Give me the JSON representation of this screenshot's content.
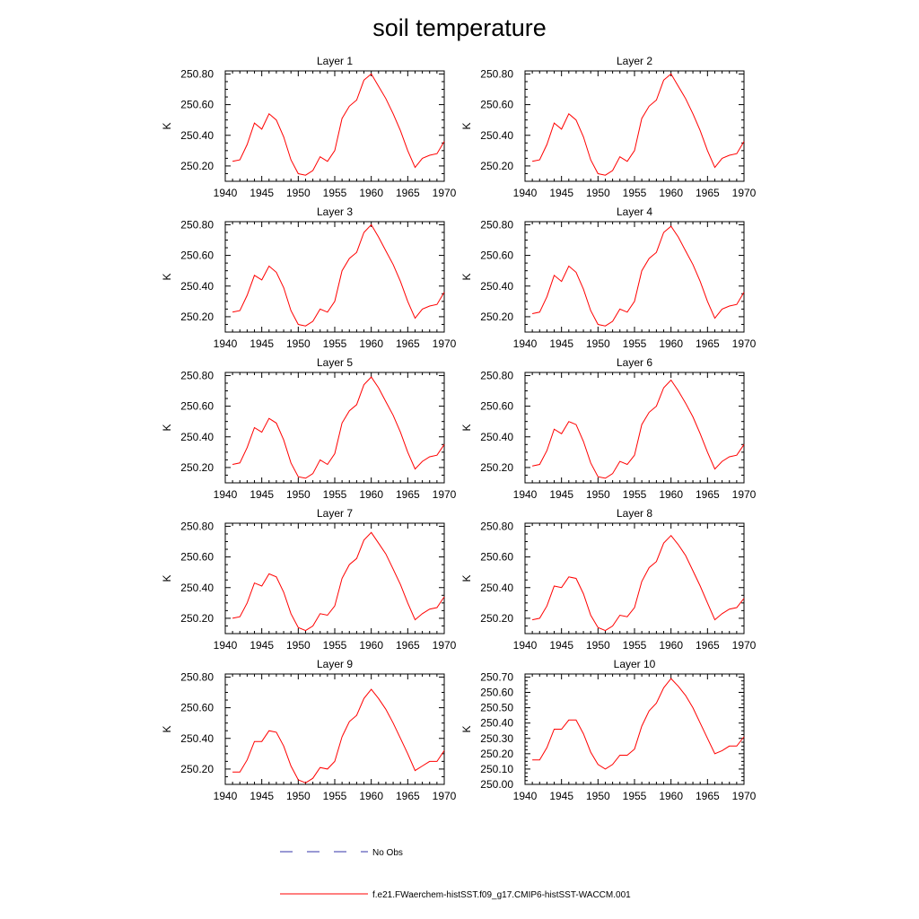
{
  "title": "soil temperature",
  "colors": {
    "model": "#ff0000",
    "obs": "#3333aa",
    "axis": "#000000"
  },
  "chart_data": [
    {
      "type": "line",
      "title": "Layer 1",
      "xlabel": "",
      "ylabel": "K",
      "xlim": [
        1940,
        1970
      ],
      "ylim": [
        250.1,
        250.82
      ],
      "xticks": [
        1940,
        1945,
        1950,
        1955,
        1960,
        1965,
        1970
      ],
      "yticks": [
        250.2,
        250.4,
        250.6,
        250.8
      ],
      "ytick_labels": [
        "250.20",
        "250.40",
        "250.60",
        "250.80"
      ],
      "x": [
        1941,
        1942,
        1943,
        1944,
        1945,
        1946,
        1947,
        1948,
        1949,
        1950,
        1951,
        1952,
        1953,
        1954,
        1955,
        1956,
        1957,
        1958,
        1959,
        1960,
        1961,
        1962,
        1963,
        1964,
        1965,
        1966,
        1967,
        1968,
        1969,
        1970
      ],
      "series": [
        {
          "name": "f.e21.FWaerchem-histSST.f09_g17.CMIP6-histSST-WACCM.001",
          "values": [
            250.23,
            250.24,
            250.34,
            250.48,
            250.44,
            250.54,
            250.5,
            250.39,
            250.24,
            250.15,
            250.14,
            250.17,
            250.26,
            250.23,
            250.3,
            250.51,
            250.59,
            250.63,
            250.76,
            250.8,
            250.72,
            250.64,
            250.54,
            250.43,
            250.3,
            250.19,
            250.25,
            250.27,
            250.28,
            250.36
          ]
        }
      ]
    },
    {
      "type": "line",
      "title": "Layer 2",
      "xlabel": "",
      "ylabel": "K",
      "xlim": [
        1940,
        1970
      ],
      "ylim": [
        250.1,
        250.82
      ],
      "xticks": [
        1940,
        1945,
        1950,
        1955,
        1960,
        1965,
        1970
      ],
      "yticks": [
        250.2,
        250.4,
        250.6,
        250.8
      ],
      "ytick_labels": [
        "250.20",
        "250.40",
        "250.60",
        "250.80"
      ],
      "x": [
        1941,
        1942,
        1943,
        1944,
        1945,
        1946,
        1947,
        1948,
        1949,
        1950,
        1951,
        1952,
        1953,
        1954,
        1955,
        1956,
        1957,
        1958,
        1959,
        1960,
        1961,
        1962,
        1963,
        1964,
        1965,
        1966,
        1967,
        1968,
        1969,
        1970
      ],
      "series": [
        {
          "name": "f.e21.FWaerchem-histSST.f09_g17.CMIP6-histSST-WACCM.001",
          "values": [
            250.23,
            250.24,
            250.34,
            250.48,
            250.44,
            250.54,
            250.5,
            250.39,
            250.24,
            250.15,
            250.14,
            250.17,
            250.26,
            250.23,
            250.3,
            250.51,
            250.59,
            250.63,
            250.76,
            250.8,
            250.72,
            250.64,
            250.54,
            250.43,
            250.3,
            250.19,
            250.25,
            250.27,
            250.28,
            250.36
          ]
        }
      ]
    },
    {
      "type": "line",
      "title": "Layer 3",
      "xlabel": "",
      "ylabel": "K",
      "xlim": [
        1940,
        1970
      ],
      "ylim": [
        250.1,
        250.82
      ],
      "xticks": [
        1940,
        1945,
        1950,
        1955,
        1960,
        1965,
        1970
      ],
      "yticks": [
        250.2,
        250.4,
        250.6,
        250.8
      ],
      "ytick_labels": [
        "250.20",
        "250.40",
        "250.60",
        "250.80"
      ],
      "x": [
        1941,
        1942,
        1943,
        1944,
        1945,
        1946,
        1947,
        1948,
        1949,
        1950,
        1951,
        1952,
        1953,
        1954,
        1955,
        1956,
        1957,
        1958,
        1959,
        1960,
        1961,
        1962,
        1963,
        1964,
        1965,
        1966,
        1967,
        1968,
        1969,
        1970
      ],
      "series": [
        {
          "name": "f.e21.FWaerchem-histSST.f09_g17.CMIP6-histSST-WACCM.001",
          "values": [
            250.23,
            250.24,
            250.34,
            250.47,
            250.44,
            250.53,
            250.49,
            250.39,
            250.24,
            250.15,
            250.14,
            250.17,
            250.25,
            250.23,
            250.3,
            250.5,
            250.58,
            250.62,
            250.75,
            250.8,
            250.72,
            250.63,
            250.54,
            250.43,
            250.3,
            250.19,
            250.25,
            250.27,
            250.28,
            250.36
          ]
        }
      ]
    },
    {
      "type": "line",
      "title": "Layer 4",
      "xlabel": "",
      "ylabel": "K",
      "xlim": [
        1940,
        1970
      ],
      "ylim": [
        250.1,
        250.82
      ],
      "xticks": [
        1940,
        1945,
        1950,
        1955,
        1960,
        1965,
        1970
      ],
      "yticks": [
        250.2,
        250.4,
        250.6,
        250.8
      ],
      "ytick_labels": [
        "250.20",
        "250.40",
        "250.60",
        "250.80"
      ],
      "x": [
        1941,
        1942,
        1943,
        1944,
        1945,
        1946,
        1947,
        1948,
        1949,
        1950,
        1951,
        1952,
        1953,
        1954,
        1955,
        1956,
        1957,
        1958,
        1959,
        1960,
        1961,
        1962,
        1963,
        1964,
        1965,
        1966,
        1967,
        1968,
        1969,
        1970
      ],
      "series": [
        {
          "name": "f.e21.FWaerchem-histSST.f09_g17.CMIP6-histSST-WACCM.001",
          "values": [
            250.22,
            250.23,
            250.33,
            250.47,
            250.43,
            250.53,
            250.49,
            250.38,
            250.24,
            250.15,
            250.14,
            250.17,
            250.25,
            250.23,
            250.3,
            250.5,
            250.58,
            250.62,
            250.75,
            250.79,
            250.72,
            250.63,
            250.54,
            250.43,
            250.3,
            250.19,
            250.25,
            250.27,
            250.28,
            250.36
          ]
        }
      ]
    },
    {
      "type": "line",
      "title": "Layer 5",
      "xlabel": "",
      "ylabel": "K",
      "xlim": [
        1940,
        1970
      ],
      "ylim": [
        250.1,
        250.82
      ],
      "xticks": [
        1940,
        1945,
        1950,
        1955,
        1960,
        1965,
        1970
      ],
      "yticks": [
        250.2,
        250.4,
        250.6,
        250.8
      ],
      "ytick_labels": [
        "250.20",
        "250.40",
        "250.60",
        "250.80"
      ],
      "x": [
        1941,
        1942,
        1943,
        1944,
        1945,
        1946,
        1947,
        1948,
        1949,
        1950,
        1951,
        1952,
        1953,
        1954,
        1955,
        1956,
        1957,
        1958,
        1959,
        1960,
        1961,
        1962,
        1963,
        1964,
        1965,
        1966,
        1967,
        1968,
        1969,
        1970
      ],
      "series": [
        {
          "name": "f.e21.FWaerchem-histSST.f09_g17.CMIP6-histSST-WACCM.001",
          "values": [
            250.22,
            250.23,
            250.33,
            250.46,
            250.43,
            250.52,
            250.49,
            250.38,
            250.23,
            250.14,
            250.13,
            250.16,
            250.25,
            250.22,
            250.29,
            250.49,
            250.57,
            250.61,
            250.74,
            250.79,
            250.72,
            250.63,
            250.54,
            250.43,
            250.3,
            250.19,
            250.24,
            250.27,
            250.28,
            250.35
          ]
        }
      ]
    },
    {
      "type": "line",
      "title": "Layer 6",
      "xlabel": "",
      "ylabel": "K",
      "xlim": [
        1940,
        1970
      ],
      "ylim": [
        250.1,
        250.82
      ],
      "xticks": [
        1940,
        1945,
        1950,
        1955,
        1960,
        1965,
        1970
      ],
      "yticks": [
        250.2,
        250.4,
        250.6,
        250.8
      ],
      "ytick_labels": [
        "250.20",
        "250.40",
        "250.60",
        "250.80"
      ],
      "x": [
        1941,
        1942,
        1943,
        1944,
        1945,
        1946,
        1947,
        1948,
        1949,
        1950,
        1951,
        1952,
        1953,
        1954,
        1955,
        1956,
        1957,
        1958,
        1959,
        1960,
        1961,
        1962,
        1963,
        1964,
        1965,
        1966,
        1967,
        1968,
        1969,
        1970
      ],
      "series": [
        {
          "name": "f.e21.FWaerchem-histSST.f09_g17.CMIP6-histSST-WACCM.001",
          "values": [
            250.21,
            250.22,
            250.31,
            250.45,
            250.42,
            250.5,
            250.48,
            250.37,
            250.23,
            250.14,
            250.13,
            250.16,
            250.24,
            250.22,
            250.28,
            250.48,
            250.56,
            250.6,
            250.72,
            250.77,
            250.7,
            250.62,
            250.53,
            250.42,
            250.3,
            250.19,
            250.24,
            250.27,
            250.28,
            250.35
          ]
        }
      ]
    },
    {
      "type": "line",
      "title": "Layer 7",
      "xlabel": "",
      "ylabel": "K",
      "xlim": [
        1940,
        1970
      ],
      "ylim": [
        250.1,
        250.82
      ],
      "xticks": [
        1940,
        1945,
        1950,
        1955,
        1960,
        1965,
        1970
      ],
      "yticks": [
        250.2,
        250.4,
        250.6,
        250.8
      ],
      "ytick_labels": [
        "250.20",
        "250.40",
        "250.60",
        "250.80"
      ],
      "x": [
        1941,
        1942,
        1943,
        1944,
        1945,
        1946,
        1947,
        1948,
        1949,
        1950,
        1951,
        1952,
        1953,
        1954,
        1955,
        1956,
        1957,
        1958,
        1959,
        1960,
        1961,
        1962,
        1963,
        1964,
        1965,
        1966,
        1967,
        1968,
        1969,
        1970
      ],
      "series": [
        {
          "name": "f.e21.FWaerchem-histSST.f09_g17.CMIP6-histSST-WACCM.001",
          "values": [
            250.2,
            250.21,
            250.3,
            250.43,
            250.41,
            250.49,
            250.47,
            250.37,
            250.23,
            250.14,
            250.12,
            250.15,
            250.23,
            250.22,
            250.28,
            250.46,
            250.55,
            250.59,
            250.71,
            250.76,
            250.69,
            250.62,
            250.52,
            250.42,
            250.3,
            250.19,
            250.23,
            250.26,
            250.27,
            250.34
          ]
        }
      ]
    },
    {
      "type": "line",
      "title": "Layer 8",
      "xlabel": "",
      "ylabel": "K",
      "xlim": [
        1940,
        1970
      ],
      "ylim": [
        250.1,
        250.82
      ],
      "xticks": [
        1940,
        1945,
        1950,
        1955,
        1960,
        1965,
        1970
      ],
      "yticks": [
        250.2,
        250.4,
        250.6,
        250.8
      ],
      "ytick_labels": [
        "250.20",
        "250.40",
        "250.60",
        "250.80"
      ],
      "x": [
        1941,
        1942,
        1943,
        1944,
        1945,
        1946,
        1947,
        1948,
        1949,
        1950,
        1951,
        1952,
        1953,
        1954,
        1955,
        1956,
        1957,
        1958,
        1959,
        1960,
        1961,
        1962,
        1963,
        1964,
        1965,
        1966,
        1967,
        1968,
        1969,
        1970
      ],
      "series": [
        {
          "name": "f.e21.FWaerchem-histSST.f09_g17.CMIP6-histSST-WACCM.001",
          "values": [
            250.19,
            250.2,
            250.28,
            250.41,
            250.4,
            250.47,
            250.46,
            250.36,
            250.22,
            250.14,
            250.12,
            250.15,
            250.22,
            250.21,
            250.27,
            250.44,
            250.53,
            250.57,
            250.69,
            250.74,
            250.68,
            250.61,
            250.51,
            250.41,
            250.3,
            250.19,
            250.23,
            250.26,
            250.27,
            250.33
          ]
        }
      ]
    },
    {
      "type": "line",
      "title": "Layer 9",
      "xlabel": "",
      "ylabel": "K",
      "xlim": [
        1940,
        1970
      ],
      "ylim": [
        250.1,
        250.82
      ],
      "xticks": [
        1940,
        1945,
        1950,
        1955,
        1960,
        1965,
        1970
      ],
      "yticks": [
        250.2,
        250.4,
        250.6,
        250.8
      ],
      "ytick_labels": [
        "250.20",
        "250.40",
        "250.60",
        "250.80"
      ],
      "x": [
        1941,
        1942,
        1943,
        1944,
        1945,
        1946,
        1947,
        1948,
        1949,
        1950,
        1951,
        1952,
        1953,
        1954,
        1955,
        1956,
        1957,
        1958,
        1959,
        1960,
        1961,
        1962,
        1963,
        1964,
        1965,
        1966,
        1967,
        1968,
        1969,
        1970
      ],
      "series": [
        {
          "name": "f.e21.FWaerchem-histSST.f09_g17.CMIP6-histSST-WACCM.001",
          "values": [
            250.18,
            250.18,
            250.26,
            250.38,
            250.38,
            250.45,
            250.44,
            250.35,
            250.22,
            250.13,
            250.11,
            250.14,
            250.21,
            250.2,
            250.25,
            250.41,
            250.51,
            250.55,
            250.66,
            250.72,
            250.66,
            250.59,
            250.5,
            250.4,
            250.3,
            250.19,
            250.22,
            250.25,
            250.25,
            250.32
          ]
        }
      ]
    },
    {
      "type": "line",
      "title": "Layer 10",
      "xlabel": "",
      "ylabel": "K",
      "xlim": [
        1940,
        1970
      ],
      "ylim": [
        250.0,
        250.72
      ],
      "xticks": [
        1940,
        1945,
        1950,
        1955,
        1960,
        1965,
        1970
      ],
      "yticks": [
        250.0,
        250.1,
        250.2,
        250.3,
        250.4,
        250.5,
        250.6,
        250.7
      ],
      "ytick_labels": [
        "250.00",
        "250.10",
        "250.20",
        "250.30",
        "250.40",
        "250.50",
        "250.60",
        "250.70"
      ],
      "x": [
        1941,
        1942,
        1943,
        1944,
        1945,
        1946,
        1947,
        1948,
        1949,
        1950,
        1951,
        1952,
        1953,
        1954,
        1955,
        1956,
        1957,
        1958,
        1959,
        1960,
        1961,
        1962,
        1963,
        1964,
        1965,
        1966,
        1967,
        1968,
        1969,
        1970
      ],
      "series": [
        {
          "name": "f.e21.FWaerchem-histSST.f09_g17.CMIP6-histSST-WACCM.001",
          "values": [
            250.16,
            250.16,
            250.24,
            250.36,
            250.36,
            250.42,
            250.42,
            250.33,
            250.21,
            250.13,
            250.1,
            250.13,
            250.19,
            250.19,
            250.23,
            250.38,
            250.48,
            250.53,
            250.63,
            250.69,
            250.64,
            250.58,
            250.5,
            250.4,
            250.3,
            250.2,
            250.22,
            250.25,
            250.25,
            250.31
          ]
        }
      ]
    }
  ],
  "legend": [
    {
      "label": "No Obs",
      "style": "dashed"
    },
    {
      "label": "f.e21.FWaerchem-histSST.f09_g17.CMIP6-histSST-WACCM.001",
      "style": "solid"
    }
  ]
}
